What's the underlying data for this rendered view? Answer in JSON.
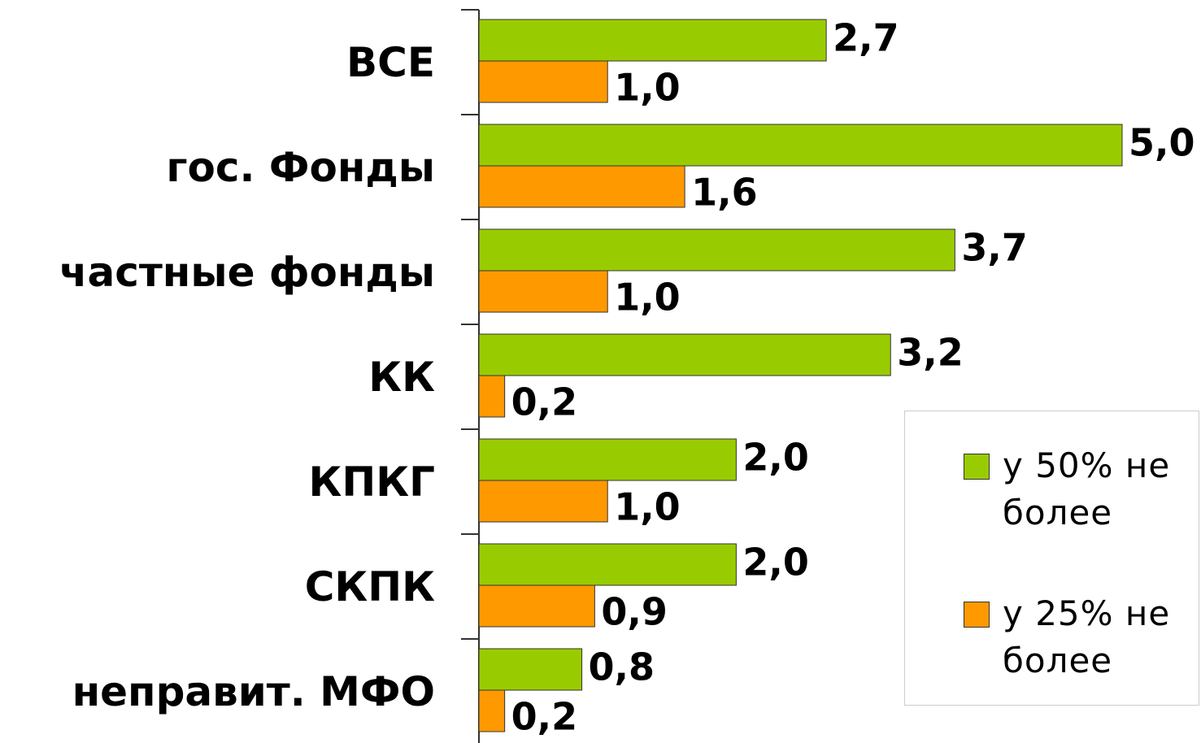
{
  "chart_data": {
    "type": "barh",
    "categories": [
      "ВСЕ",
      "гос. Фонды",
      "частные фонды",
      "КК",
      "КПКГ",
      "СКПК",
      "неправит. МФО"
    ],
    "series": [
      {
        "name": "у 50% не более",
        "color": "#99cc00",
        "values": [
          2.7,
          5.0,
          3.7,
          3.2,
          2.0,
          2.0,
          0.8
        ],
        "value_labels": [
          "2,7",
          "5,0",
          "3,7",
          "3,2",
          "2,0",
          "2,0",
          "0,8"
        ]
      },
      {
        "name": "у 25% не более",
        "color": "#ff9900",
        "values": [
          1.0,
          1.6,
          1.0,
          0.2,
          1.0,
          0.9,
          0.2
        ],
        "value_labels": [
          "1,0",
          "1,6",
          "1,0",
          "0,2",
          "1,0",
          "0,9",
          "0,2"
        ]
      }
    ],
    "legend": "right"
  }
}
